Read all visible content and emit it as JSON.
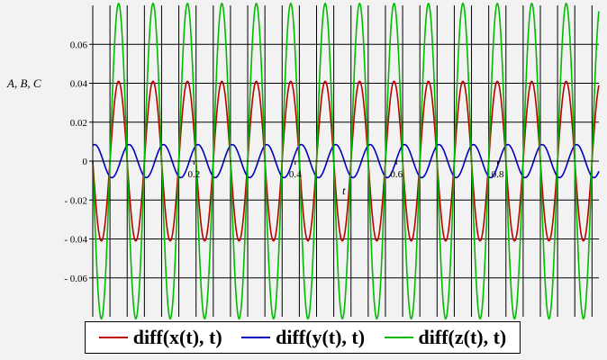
{
  "chart_data": {
    "type": "line",
    "title": "",
    "xlabel": "t",
    "ylabel": "A, B, C",
    "xlim": [
      0,
      1
    ],
    "ylim": [
      -0.08,
      0.08
    ],
    "grid": true,
    "legend_position": "bottom",
    "x_ticks": [
      {
        "value": 0.2,
        "label": "0.2"
      },
      {
        "value": 0.4,
        "label": "0.4"
      },
      {
        "value": 0.6,
        "label": "0.6"
      },
      {
        "value": 0.8,
        "label": "0.8"
      }
    ],
    "y_ticks": [
      {
        "value": 0.06,
        "label": "0.06"
      },
      {
        "value": 0.04,
        "label": "0.04"
      },
      {
        "value": 0.02,
        "label": "0.02"
      },
      {
        "value": 0,
        "label": "0"
      },
      {
        "value": -0.02,
        "label": "- 0.02"
      },
      {
        "value": -0.04,
        "label": "- 0.04"
      },
      {
        "value": -0.06,
        "label": "- 0.06"
      }
    ],
    "series": [
      {
        "name": "diff(x(t), t)",
        "color": "#bb0000",
        "amplitude": 0.041,
        "cycles": 14.7,
        "phase": 1.5708
      },
      {
        "name": "diff(y(t), t)",
        "color": "#0000bb",
        "amplitude": 0.0085,
        "cycles": 14.7,
        "phase": -0.35
      },
      {
        "name": "diff(z(t), t)",
        "color": "#00bb00",
        "amplitude": 0.081,
        "cycles": 14.7,
        "phase": 1.5708
      }
    ]
  }
}
